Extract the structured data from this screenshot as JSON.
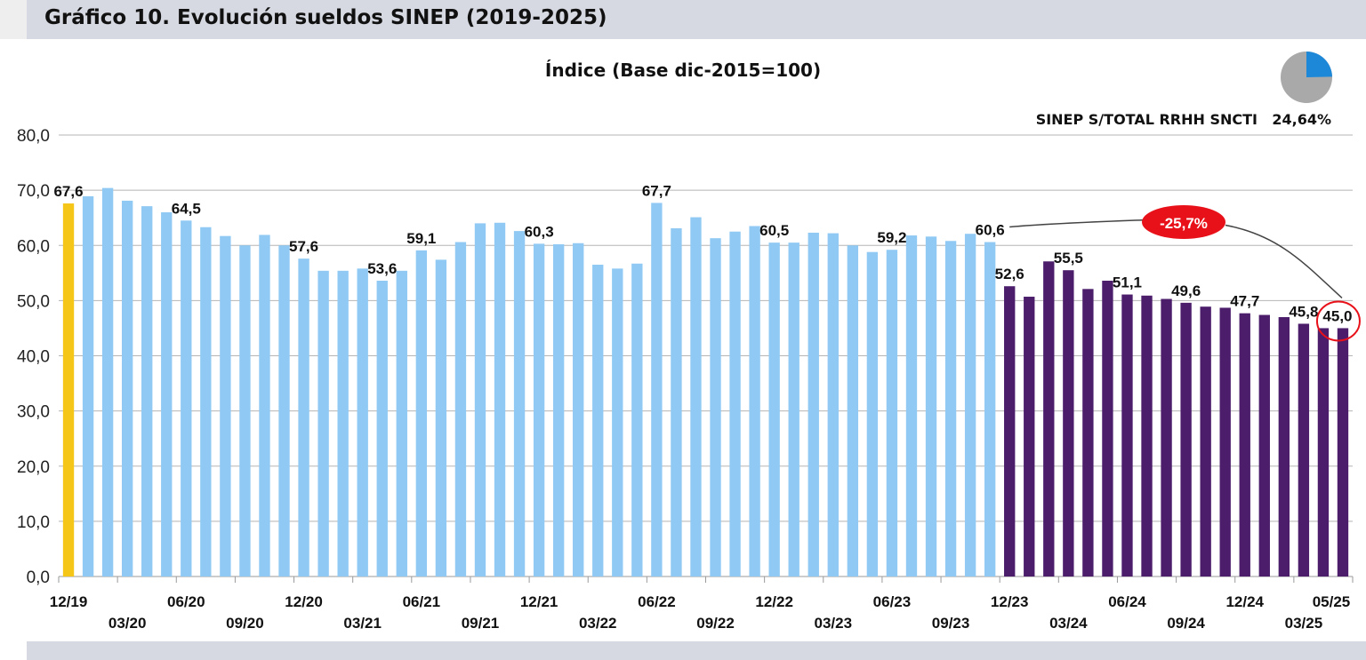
{
  "header": {
    "title": "Gráfico 10. Evolución sueldos SINEP (2019-2025)"
  },
  "chart_data": {
    "type": "bar",
    "title": "Índice (Base dic-2015=100)",
    "ylim": [
      0,
      80
    ],
    "yticks": [
      "0,0",
      "10,0",
      "20,0",
      "30,0",
      "40,0",
      "50,0",
      "60,0",
      "70,0",
      "80,0"
    ],
    "grid": true,
    "colors": {
      "base": "#f5c518",
      "period1": "#8fc9f4",
      "period2": "#4b1d6b",
      "callout": "#e8111a"
    },
    "values": [
      67.6,
      68.9,
      70.4,
      68.1,
      67.1,
      66.0,
      64.5,
      63.3,
      61.7,
      60.0,
      61.9,
      60.0,
      57.6,
      55.4,
      55.4,
      55.8,
      53.6,
      55.4,
      59.1,
      57.4,
      60.6,
      64.0,
      64.1,
      62.6,
      60.3,
      60.2,
      60.4,
      56.5,
      55.8,
      56.7,
      67.7,
      63.1,
      65.1,
      61.3,
      62.5,
      63.5,
      60.5,
      60.5,
      62.3,
      62.2,
      60.0,
      58.8,
      59.2,
      61.8,
      61.6,
      60.8,
      62.1,
      60.6,
      52.6,
      50.7,
      57.1,
      55.5,
      52.1,
      53.6,
      51.1,
      50.9,
      50.3,
      49.6,
      48.9,
      48.7,
      47.7,
      47.4,
      47.0,
      45.8,
      45.0,
      45.0
    ],
    "value_labels": [
      {
        "index": 0,
        "text": "67,6"
      },
      {
        "index": 6,
        "text": "64,5"
      },
      {
        "index": 12,
        "text": "57,6"
      },
      {
        "index": 16,
        "text": "53,6"
      },
      {
        "index": 18,
        "text": "59,1"
      },
      {
        "index": 24,
        "text": "60,3"
      },
      {
        "index": 30,
        "text": "67,7"
      },
      {
        "index": 36,
        "text": "60,5"
      },
      {
        "index": 42,
        "text": "59,2"
      },
      {
        "index": 47,
        "text": "60,6"
      },
      {
        "index": 48,
        "text": "52,6"
      },
      {
        "index": 51,
        "text": "55,5"
      },
      {
        "index": 54,
        "text": "51,1"
      },
      {
        "index": 57,
        "text": "49,6"
      },
      {
        "index": 60,
        "text": "47,7"
      },
      {
        "index": 63,
        "text": "45,8"
      },
      {
        "index": 65,
        "text": "45,0"
      }
    ],
    "x_tick_labels": [
      {
        "index": 0,
        "text": "12/19",
        "row": 1
      },
      {
        "index": 3,
        "text": "03/20",
        "row": 2
      },
      {
        "index": 6,
        "text": "06/20",
        "row": 1
      },
      {
        "index": 9,
        "text": "09/20",
        "row": 2
      },
      {
        "index": 12,
        "text": "12/20",
        "row": 1
      },
      {
        "index": 15,
        "text": "03/21",
        "row": 2
      },
      {
        "index": 18,
        "text": "06/21",
        "row": 1
      },
      {
        "index": 21,
        "text": "09/21",
        "row": 2
      },
      {
        "index": 24,
        "text": "12/21",
        "row": 1
      },
      {
        "index": 27,
        "text": "03/22",
        "row": 2
      },
      {
        "index": 30,
        "text": "06/22",
        "row": 1
      },
      {
        "index": 33,
        "text": "09/22",
        "row": 2
      },
      {
        "index": 36,
        "text": "12/22",
        "row": 1
      },
      {
        "index": 39,
        "text": "03/23",
        "row": 2
      },
      {
        "index": 42,
        "text": "06/23",
        "row": 1
      },
      {
        "index": 45,
        "text": "09/23",
        "row": 2
      },
      {
        "index": 48,
        "text": "12/23",
        "row": 1
      },
      {
        "index": 51,
        "text": "03/24",
        "row": 2
      },
      {
        "index": 54,
        "text": "06/24",
        "row": 1
      },
      {
        "index": 57,
        "text": "09/24",
        "row": 2
      },
      {
        "index": 60,
        "text": "12/24",
        "row": 1
      },
      {
        "index": 63,
        "text": "03/25",
        "row": 2
      },
      {
        "index": 65,
        "text": "05/25",
        "row": 1
      }
    ],
    "callout": {
      "text": "-25,7%",
      "from_index": 47,
      "to_index": 65
    },
    "share": {
      "label": "SINEP S/TOTAL RRHH SNCTI",
      "value": "24,64%",
      "fraction": 0.2464,
      "colors": [
        "#1e88d8",
        "#a9a9a9"
      ]
    }
  }
}
